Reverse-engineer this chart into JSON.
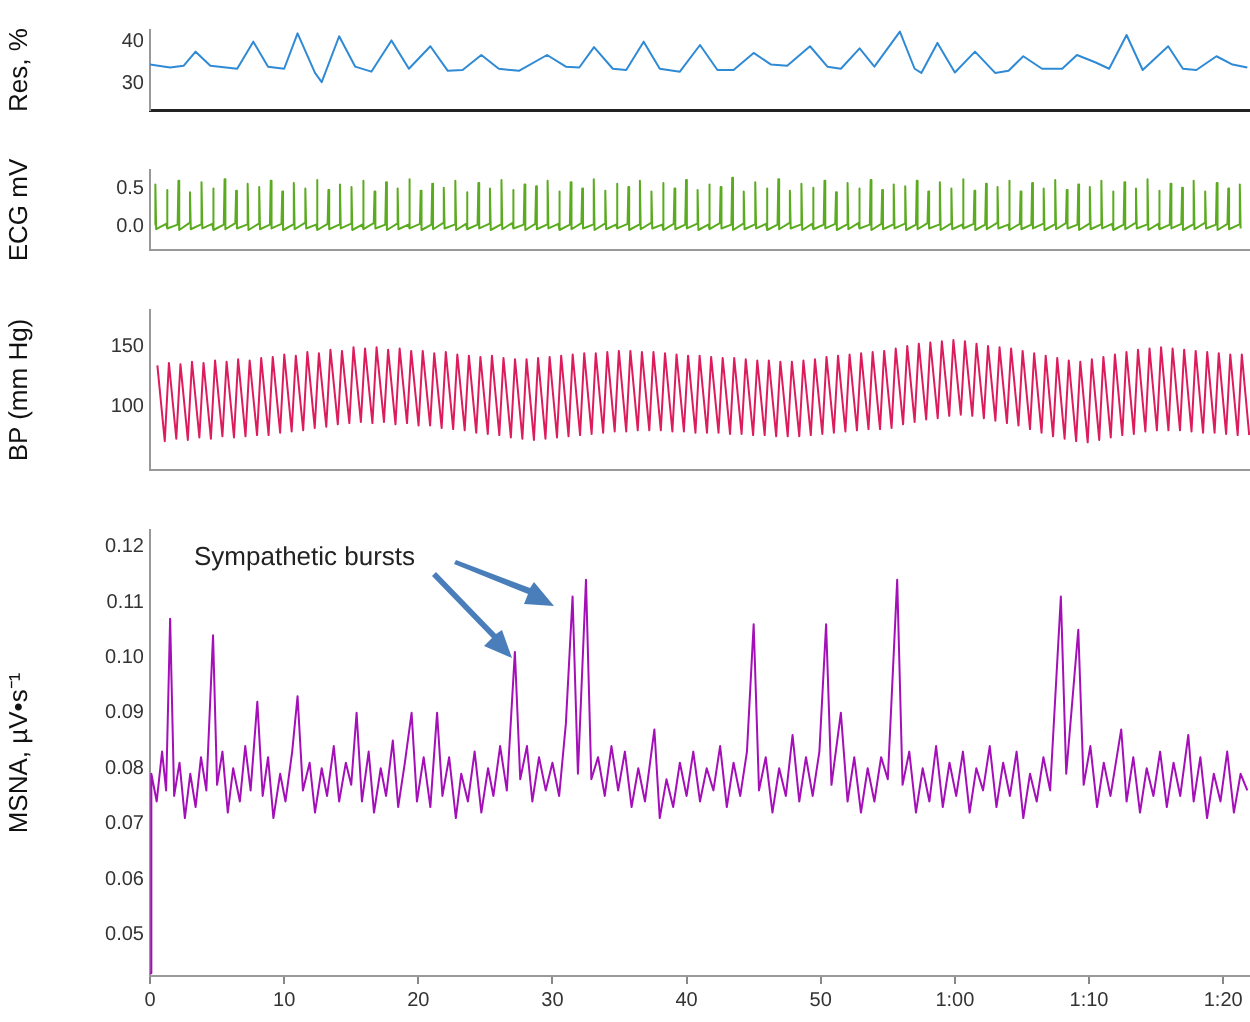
{
  "chart_data": [
    {
      "type": "line",
      "ylabel": "Res, %",
      "color": "#2f8ad6",
      "xlim": [
        0,
        82
      ],
      "ylim": [
        23.6,
        42.8
      ],
      "yticks": [
        30,
        40
      ],
      "tick_labels": "y",
      "x": [
        0,
        1.5,
        2.5,
        3.4,
        4.5,
        6.5,
        7.7,
        8.8,
        10,
        11.0,
        12.3,
        12.8,
        14.1,
        15.3,
        16.5,
        18.0,
        19.3,
        20.9,
        22.2,
        23.3,
        24.7,
        26,
        27.5,
        29.6,
        31,
        32,
        33.1,
        34.5,
        35.5,
        36.8,
        38,
        39.5,
        41.0,
        42.3,
        43.5,
        45.0,
        46.3,
        47.5,
        49.2,
        50.5,
        51.5,
        52.9,
        54,
        55.9,
        57,
        57.5,
        58.7,
        60,
        61.5,
        63,
        64,
        65.1,
        66.5,
        68,
        69.1,
        70.5,
        71.5,
        72.8,
        74,
        75.9,
        77,
        78,
        79.5,
        80.7,
        81.8
      ],
      "values": [
        34.5,
        33.8,
        34.2,
        37.6,
        34.2,
        33.5,
        40,
        34,
        33.5,
        42,
        32.5,
        30.3,
        41.3,
        34,
        32.8,
        40.3,
        33.5,
        38.9,
        33,
        33.2,
        36.8,
        33.5,
        33,
        36.8,
        34,
        33.8,
        38.7,
        33.5,
        33.2,
        40,
        33.5,
        32.8,
        39.2,
        33.2,
        33.2,
        37.3,
        34.5,
        34.2,
        38.9,
        34,
        33.5,
        38.4,
        34,
        42.4,
        33.5,
        32.5,
        39.7,
        32.6,
        37.6,
        32.5,
        33,
        36.5,
        33.5,
        33.5,
        36.8,
        35,
        33.5,
        41.6,
        33.2,
        38.9,
        33.5,
        33.2,
        36.5,
        34.5,
        33.8
      ]
    },
    {
      "type": "line",
      "ylabel": "ECG mV",
      "color": "#5aab1e",
      "xlim": [
        0,
        82
      ],
      "ylim": [
        -0.3,
        0.74
      ],
      "yticks": [
        {
          "value": 0,
          "label": "0.0"
        },
        {
          "value": 0.5,
          "label": "0.5"
        }
      ],
      "tick_labels": "y",
      "x": [
        0.34,
        0.4,
        0.46,
        1.2,
        1.26,
        1.32,
        2.06,
        2.12,
        2.18,
        2.92,
        2.98,
        3.04,
        3.78,
        3.84,
        3.9,
        4.64,
        4.7,
        4.76,
        5.5,
        5.56,
        5.62,
        6.36,
        6.42,
        6.48,
        7.22,
        7.28,
        7.34,
        8.08,
        8.14,
        8.2,
        8.94,
        9.0,
        9.06,
        9.8,
        9.86,
        9.92,
        10.66,
        10.72,
        10.78,
        11.52,
        11.58,
        11.64,
        12.38,
        12.44,
        12.5,
        13.24,
        13.3,
        13.36,
        14.1,
        14.16,
        14.22,
        14.96,
        15.02,
        15.08,
        15.82,
        15.88,
        15.94,
        16.68,
        16.74,
        16.8,
        17.54,
        17.6,
        17.66,
        18.4,
        18.46,
        18.52,
        19.26,
        19.32,
        19.38,
        20.12,
        20.18,
        20.24,
        20.98,
        21.04,
        21.1,
        21.84,
        21.9,
        21.96,
        22.7,
        22.76,
        22.82,
        23.56,
        23.62,
        23.68,
        24.42,
        24.48,
        24.54,
        25.28,
        25.34,
        25.4,
        26.14,
        26.2,
        26.26,
        27.0,
        27.06,
        27.12,
        27.86,
        27.92,
        27.98,
        28.72,
        28.78,
        28.84,
        29.58,
        29.64,
        29.7,
        30.44,
        30.5,
        30.56,
        31.3,
        31.36,
        31.42,
        32.16,
        32.22,
        32.28,
        33.02,
        33.08,
        33.14,
        33.88,
        33.94,
        34.0,
        34.74,
        34.8,
        34.86,
        35.6,
        35.66,
        35.72,
        36.46,
        36.52,
        36.58,
        37.32,
        37.38,
        37.44,
        38.18,
        38.24,
        38.3,
        39.04,
        39.1,
        39.16,
        39.9,
        39.96,
        40.02,
        40.76,
        40.82,
        40.88,
        41.62,
        41.68,
        41.74,
        42.48,
        42.54,
        42.6,
        43.34,
        43.4,
        43.46,
        44.2,
        44.26,
        44.32,
        45.06,
        45.12,
        45.18,
        45.92,
        45.98,
        46.04,
        46.78,
        46.84,
        46.9,
        47.64,
        47.7,
        47.76,
        48.5,
        48.56,
        48.62,
        49.36,
        49.42,
        49.48,
        50.22,
        50.28,
        50.34,
        51.08,
        51.14,
        51.2,
        51.94,
        52.0,
        52.06,
        52.8,
        52.86,
        52.92,
        53.66,
        53.72,
        53.78,
        54.52,
        54.58,
        54.64,
        55.38,
        55.44,
        55.5,
        56.24,
        56.3,
        56.36,
        57.1,
        57.16,
        57.22,
        57.96,
        58.02,
        58.08,
        58.82,
        58.88,
        58.94,
        59.68,
        59.74,
        59.8,
        60.54,
        60.6,
        60.66,
        61.4,
        61.46,
        61.52,
        62.26,
        62.32,
        62.38,
        63.12,
        63.18,
        63.24,
        63.98,
        64.04,
        64.1,
        64.84,
        64.9,
        64.96,
        65.7,
        65.76,
        65.82,
        66.56,
        66.62,
        66.68,
        67.42,
        67.48,
        67.54,
        68.28,
        68.34,
        68.4,
        69.14,
        69.2,
        69.26,
        70.0,
        70.06,
        70.12,
        70.86,
        70.92,
        70.98,
        71.72,
        71.78,
        71.84,
        72.58,
        72.64,
        72.7,
        73.44,
        73.5,
        73.56,
        74.3,
        74.36,
        74.42,
        75.16,
        75.22,
        75.28,
        76.02,
        76.08,
        76.14,
        76.88,
        76.94,
        77.0,
        77.74,
        77.8,
        77.86,
        78.6,
        78.66,
        78.72,
        79.46,
        79.52,
        79.58,
        80.32,
        80.38,
        80.44,
        81.18,
        81.24,
        81.3
      ],
      "values": [
        0.03,
        0.55,
        -0.03,
        0.04,
        0.48,
        -0.02,
        0.03,
        0.6,
        -0.04,
        0.05,
        0.45,
        -0.03,
        0.03,
        0.58,
        -0.02,
        0.04,
        0.5,
        -0.04,
        0.03,
        0.62,
        -0.03,
        0.05,
        0.47,
        -0.02,
        0.03,
        0.56,
        -0.04,
        0.04,
        0.52,
        -0.03,
        0.03,
        0.6,
        -0.02,
        0.04,
        0.46,
        -0.04,
        0.03,
        0.57,
        -0.03,
        0.05,
        0.5,
        -0.02,
        0.03,
        0.61,
        -0.04,
        0.04,
        0.48,
        -0.03,
        0.03,
        0.55,
        -0.02,
        0.04,
        0.52,
        -0.04,
        0.03,
        0.6,
        -0.03,
        0.05,
        0.46,
        -0.02,
        0.03,
        0.58,
        -0.04,
        0.04,
        0.5,
        -0.03,
        0.03,
        0.62,
        -0.02,
        0.04,
        0.47,
        -0.04,
        0.03,
        0.56,
        -0.03,
        0.05,
        0.51,
        -0.02,
        0.03,
        0.6,
        -0.04,
        0.04,
        0.45,
        -0.03,
        0.03,
        0.57,
        -0.02,
        0.04,
        0.5,
        -0.04,
        0.03,
        0.61,
        -0.03,
        0.05,
        0.48,
        -0.02,
        0.03,
        0.55,
        -0.04,
        0.04,
        0.53,
        -0.03,
        0.03,
        0.6,
        -0.02,
        0.04,
        0.46,
        -0.04,
        0.03,
        0.58,
        -0.03,
        0.05,
        0.5,
        -0.02,
        0.03,
        0.62,
        -0.04,
        0.04,
        0.47,
        -0.03,
        0.03,
        0.56,
        -0.02,
        0.04,
        0.52,
        -0.04,
        0.03,
        0.6,
        -0.03,
        0.05,
        0.46,
        -0.02,
        0.03,
        0.57,
        -0.04,
        0.04,
        0.5,
        -0.03,
        0.03,
        0.61,
        -0.02,
        0.04,
        0.48,
        -0.04,
        0.03,
        0.55,
        -0.03,
        0.05,
        0.52,
        -0.02,
        0.03,
        0.64,
        -0.04,
        0.04,
        0.46,
        -0.03,
        0.03,
        0.58,
        -0.02,
        0.04,
        0.5,
        -0.04,
        0.03,
        0.62,
        -0.03,
        0.05,
        0.47,
        -0.02,
        0.03,
        0.56,
        -0.04,
        0.04,
        0.51,
        -0.03,
        0.03,
        0.6,
        -0.02,
        0.04,
        0.45,
        -0.04,
        0.03,
        0.57,
        -0.03,
        0.05,
        0.5,
        -0.02,
        0.03,
        0.61,
        -0.04,
        0.04,
        0.48,
        -0.03,
        0.03,
        0.55,
        -0.02,
        0.04,
        0.53,
        -0.04,
        0.03,
        0.6,
        -0.03,
        0.05,
        0.46,
        -0.02,
        0.03,
        0.58,
        -0.04,
        0.04,
        0.5,
        -0.03,
        0.03,
        0.62,
        -0.02,
        0.04,
        0.47,
        -0.04,
        0.03,
        0.56,
        -0.03,
        0.05,
        0.52,
        -0.02,
        0.03,
        0.6,
        -0.04,
        0.04,
        0.46,
        -0.03,
        0.03,
        0.57,
        -0.02,
        0.04,
        0.5,
        -0.04,
        0.03,
        0.61,
        -0.03,
        0.05,
        0.48,
        -0.02,
        0.03,
        0.55,
        -0.04,
        0.04,
        0.52,
        -0.03,
        0.03,
        0.6,
        -0.02,
        0.04,
        0.46,
        -0.04,
        0.03,
        0.58,
        -0.03,
        0.05,
        0.5,
        -0.02,
        0.03,
        0.62,
        -0.04,
        0.04,
        0.47,
        -0.03,
        0.03,
        0.56,
        -0.02,
        0.04,
        0.51,
        -0.04,
        0.03,
        0.6,
        -0.03,
        0.05,
        0.46,
        -0.02,
        0.03,
        0.57,
        -0.04,
        0.04,
        0.5,
        -0.03,
        0.03,
        0.55,
        -0.02
      ]
    },
    {
      "type": "line",
      "ylabel": "BP (mm Hg)",
      "color": "#dd1c5c",
      "xlim": [
        0,
        82
      ],
      "ylim": [
        47,
        180
      ],
      "yticks": [
        100,
        150
      ],
      "tick_labels": "y",
      "x": [
        0.55,
        1.1,
        1.41,
        1.96,
        2.27,
        2.82,
        3.13,
        3.68,
        3.99,
        4.54,
        4.85,
        5.4,
        5.71,
        6.26,
        6.57,
        7.12,
        7.43,
        7.98,
        8.29,
        8.84,
        9.15,
        9.7,
        10.01,
        10.56,
        10.87,
        11.42,
        11.73,
        12.28,
        12.59,
        13.14,
        13.45,
        14.0,
        14.31,
        14.86,
        15.17,
        15.72,
        16.03,
        16.58,
        16.89,
        17.44,
        17.75,
        18.3,
        18.61,
        19.16,
        19.47,
        20.02,
        20.33,
        20.88,
        21.19,
        21.74,
        22.05,
        22.6,
        22.91,
        23.46,
        23.77,
        24.32,
        24.63,
        25.18,
        25.49,
        26.04,
        26.35,
        26.9,
        27.21,
        27.76,
        28.07,
        28.62,
        28.93,
        29.48,
        29.79,
        30.34,
        30.65,
        31.2,
        31.51,
        32.06,
        32.37,
        32.92,
        33.23,
        33.78,
        34.09,
        34.64,
        34.95,
        35.5,
        35.81,
        36.36,
        36.67,
        37.22,
        37.53,
        38.08,
        38.39,
        38.94,
        39.25,
        39.8,
        40.11,
        40.66,
        40.97,
        41.52,
        41.83,
        42.38,
        42.69,
        43.24,
        43.55,
        44.1,
        44.41,
        44.96,
        45.27,
        45.82,
        46.13,
        46.68,
        46.99,
        47.54,
        47.85,
        48.4,
        48.71,
        49.26,
        49.57,
        50.12,
        50.43,
        50.98,
        51.29,
        51.84,
        52.15,
        52.7,
        53.01,
        53.56,
        53.87,
        54.42,
        54.73,
        55.28,
        55.59,
        56.14,
        56.45,
        57.0,
        57.31,
        57.86,
        58.17,
        58.72,
        59.03,
        59.58,
        59.89,
        60.44,
        60.75,
        61.3,
        61.61,
        62.16,
        62.47,
        63.02,
        63.33,
        63.88,
        64.19,
        64.74,
        65.05,
        65.6,
        65.91,
        66.46,
        66.77,
        67.32,
        67.63,
        68.18,
        68.49,
        69.04,
        69.35,
        69.9,
        70.21,
        70.76,
        71.07,
        71.62,
        71.93,
        72.48,
        72.79,
        73.34,
        73.65,
        74.2,
        74.51,
        75.06,
        75.37,
        75.92,
        76.23,
        76.78,
        77.09,
        77.64,
        77.95,
        78.5,
        78.81,
        79.36,
        79.67,
        80.22,
        80.53,
        81.08,
        81.39,
        81.94
      ],
      "values": [
        134,
        71,
        136,
        73,
        135,
        72,
        137,
        74,
        136,
        73,
        138,
        75,
        137,
        74,
        139,
        75,
        138,
        76,
        140,
        76,
        141,
        78,
        143,
        79,
        142,
        80,
        145,
        82,
        144,
        83,
        147,
        85,
        146,
        86,
        149,
        87,
        148,
        86,
        149,
        87,
        147,
        85,
        148,
        86,
        146,
        84,
        146,
        84,
        144,
        82,
        145,
        81,
        143,
        80,
        142,
        78,
        141,
        77,
        142,
        76,
        140,
        74,
        139,
        73,
        139,
        72,
        140,
        73,
        141,
        74,
        142,
        75,
        143,
        76,
        144,
        77,
        144,
        78,
        145,
        79,
        146,
        79,
        146,
        80,
        145,
        80,
        145,
        80,
        144,
        79,
        143,
        79,
        142,
        78,
        142,
        78,
        141,
        78,
        140,
        77,
        140,
        77,
        139,
        76,
        138,
        76,
        138,
        75,
        137,
        75,
        137,
        75,
        138,
        76,
        139,
        77,
        141,
        78,
        142,
        79,
        143,
        80,
        144,
        81,
        145,
        81,
        146,
        82,
        148,
        85,
        150,
        87,
        152,
        89,
        153,
        90,
        154,
        92,
        155,
        93,
        154,
        92,
        152,
        90,
        150,
        88,
        149,
        86,
        148,
        84,
        146,
        81,
        144,
        78,
        142,
        75,
        140,
        73,
        138,
        71,
        137,
        70,
        139,
        72,
        141,
        74,
        143,
        76,
        145,
        77,
        147,
        79,
        148,
        80,
        149,
        80,
        148,
        80,
        147,
        79,
        146,
        78,
        145,
        78,
        144,
        77,
        143,
        76,
        143,
        76
      ]
    },
    {
      "type": "line",
      "ylabel": "MSNA, µV•s⁻¹",
      "color": "#a40fb8",
      "xlim": [
        0,
        82
      ],
      "ylim": [
        0.0425,
        0.123
      ],
      "yticks": [
        0.05,
        0.06,
        0.07,
        0.08,
        0.09,
        {
          "value": 0.1,
          "label": "0.10"
        },
        0.11,
        0.12
      ],
      "xticks": [
        0,
        10,
        20,
        30,
        40,
        50,
        {
          "value": 60,
          "label": "1:00"
        },
        {
          "value": 70,
          "label": "1:10"
        },
        {
          "value": 80,
          "label": "1:20"
        }
      ],
      "annotations": [
        "Sympathetic bursts"
      ],
      "x": [
        0,
        0.1,
        0.5,
        0.9,
        1.2,
        1.5,
        1.8,
        2.2,
        2.6,
        3.0,
        3.4,
        3.8,
        4.2,
        4.7,
        5.0,
        5.4,
        5.8,
        6.2,
        6.7,
        7.1,
        7.5,
        8.0,
        8.4,
        8.8,
        9.2,
        9.7,
        10.1,
        10.6,
        11.0,
        11.4,
        11.9,
        12.3,
        12.8,
        13.2,
        13.7,
        14.1,
        14.6,
        15.0,
        15.4,
        15.8,
        16.3,
        16.7,
        17.2,
        17.6,
        18.1,
        18.5,
        19.0,
        19.5,
        19.9,
        20.4,
        20.9,
        21.4,
        21.8,
        22.3,
        22.8,
        23.2,
        23.7,
        24.2,
        24.7,
        25.2,
        25.6,
        26.1,
        26.6,
        27.2,
        27.6,
        28.1,
        28.5,
        29.0,
        29.5,
        30.0,
        30.5,
        31.0,
        31.5,
        31.9,
        32.5,
        32.9,
        33.4,
        33.9,
        34.4,
        34.9,
        35.4,
        35.9,
        36.4,
        36.9,
        37.6,
        38.0,
        38.5,
        39.0,
        39.5,
        40.0,
        40.5,
        41.0,
        41.5,
        42.0,
        42.5,
        43.0,
        43.5,
        44.0,
        44.5,
        45.0,
        45.4,
        45.9,
        46.4,
        46.9,
        47.4,
        47.9,
        48.4,
        48.9,
        49.4,
        49.9,
        50.4,
        50.8,
        51.5,
        52.0,
        52.5,
        53.0,
        53.5,
        54.0,
        54.5,
        55.0,
        55.7,
        56.1,
        56.6,
        57.1,
        57.6,
        58.1,
        58.6,
        59.1,
        59.6,
        60.1,
        60.6,
        61.1,
        61.6,
        62.1,
        62.6,
        63.1,
        63.6,
        64.1,
        64.6,
        65.1,
        65.6,
        66.1,
        66.6,
        67.1,
        67.9,
        68.3,
        69.2,
        69.6,
        70.1,
        70.6,
        71.1,
        71.6,
        72.4,
        72.8,
        73.3,
        73.8,
        74.3,
        74.8,
        75.3,
        75.8,
        76.3,
        76.8,
        77.4,
        77.8,
        78.3,
        78.8,
        79.3,
        79.8,
        80.3,
        80.8,
        81.3,
        81.8
      ],
      "values": [
        0.043,
        0.079,
        0.074,
        0.083,
        0.076,
        0.107,
        0.075,
        0.081,
        0.071,
        0.079,
        0.073,
        0.082,
        0.076,
        0.104,
        0.077,
        0.083,
        0.072,
        0.08,
        0.074,
        0.084,
        0.076,
        0.092,
        0.075,
        0.082,
        0.071,
        0.079,
        0.074,
        0.083,
        0.093,
        0.076,
        0.081,
        0.072,
        0.08,
        0.075,
        0.084,
        0.074,
        0.081,
        0.077,
        0.09,
        0.074,
        0.083,
        0.072,
        0.08,
        0.075,
        0.085,
        0.073,
        0.081,
        0.09,
        0.074,
        0.082,
        0.073,
        0.09,
        0.075,
        0.082,
        0.071,
        0.079,
        0.074,
        0.083,
        0.072,
        0.08,
        0.075,
        0.084,
        0.076,
        0.101,
        0.078,
        0.084,
        0.074,
        0.082,
        0.076,
        0.081,
        0.075,
        0.088,
        0.111,
        0.079,
        0.114,
        0.078,
        0.082,
        0.075,
        0.084,
        0.076,
        0.083,
        0.073,
        0.08,
        0.074,
        0.087,
        0.071,
        0.078,
        0.073,
        0.081,
        0.075,
        0.083,
        0.074,
        0.08,
        0.076,
        0.084,
        0.073,
        0.081,
        0.075,
        0.083,
        0.106,
        0.076,
        0.082,
        0.072,
        0.08,
        0.075,
        0.086,
        0.074,
        0.082,
        0.075,
        0.083,
        0.106,
        0.077,
        0.09,
        0.074,
        0.082,
        0.072,
        0.08,
        0.074,
        0.082,
        0.078,
        0.114,
        0.077,
        0.083,
        0.072,
        0.08,
        0.074,
        0.084,
        0.073,
        0.081,
        0.075,
        0.083,
        0.072,
        0.08,
        0.076,
        0.084,
        0.073,
        0.081,
        0.075,
        0.083,
        0.071,
        0.079,
        0.074,
        0.082,
        0.076,
        0.111,
        0.079,
        0.105,
        0.077,
        0.084,
        0.073,
        0.081,
        0.075,
        0.087,
        0.074,
        0.082,
        0.072,
        0.08,
        0.075,
        0.083,
        0.073,
        0.081,
        0.075,
        0.086,
        0.074,
        0.082,
        0.071,
        0.079,
        0.074,
        0.083,
        0.072,
        0.079,
        0.076
      ]
    }
  ]
}
